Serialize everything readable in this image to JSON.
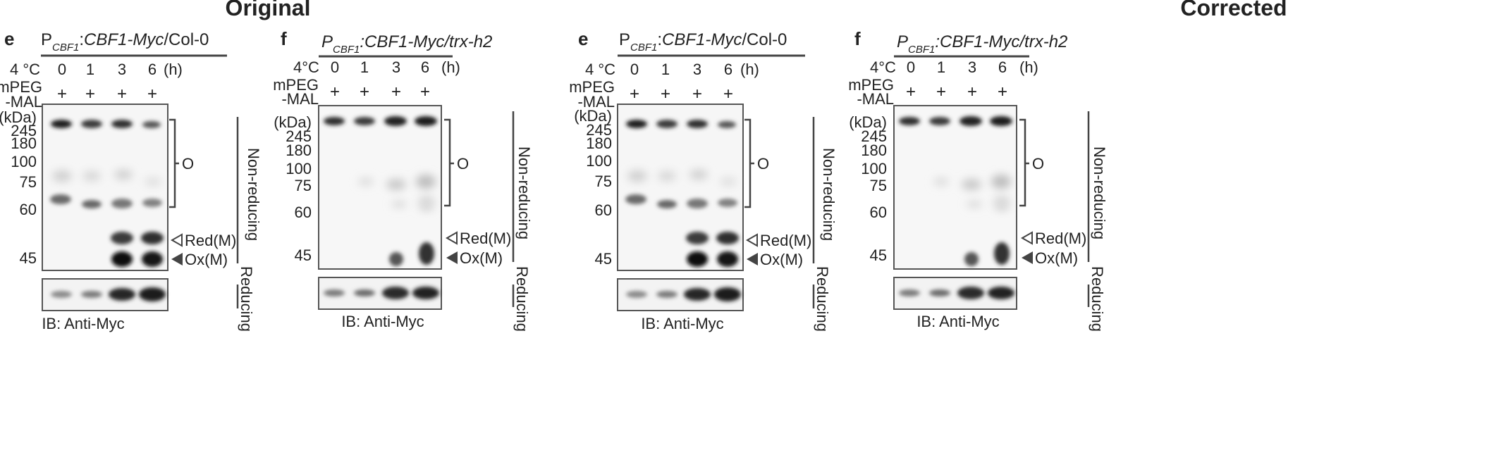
{
  "headers": {
    "left": "Original",
    "right": "Corrected"
  },
  "panels": [
    {
      "letter": "e",
      "genotype": {
        "p": "P",
        "sub": "CBF1",
        "colon": ":",
        "construct": "CBF1-Myc",
        "slash": "/",
        "background": "Col-0",
        "background_italic": false
      },
      "temp_label": "4 °C",
      "times": [
        "0",
        "1",
        "3",
        "6"
      ],
      "time_unit": "(h)",
      "reagent": [
        "mPEG",
        "-MAL"
      ],
      "plus": [
        "+",
        "+",
        "+",
        "+"
      ],
      "kda": "(kDa)",
      "markers": [
        "245",
        "180",
        "100",
        "75",
        "60",
        "45"
      ],
      "bracket_label": "O",
      "red_label": "Red(M)",
      "ox_label": "Ox(M)",
      "nonreducing": "Non-reducing",
      "reducing": "Reducing",
      "ib": "IB: Anti-Myc"
    },
    {
      "letter": "f",
      "genotype": {
        "p": "P",
        "sub": "CBF1",
        "colon": ":",
        "construct": "CBF1-Myc",
        "slash": "/",
        "background": "trx-h2",
        "background_italic": true
      },
      "temp_label": "4°C",
      "times": [
        "0",
        "1",
        "3",
        "6"
      ],
      "time_unit": "(h)",
      "reagent": [
        "mPEG",
        "-MAL"
      ],
      "plus": [
        "+",
        "+",
        "+",
        "+"
      ],
      "kda": "(kDa)",
      "markers": [
        "245",
        "180",
        "100",
        "75",
        "60",
        "45"
      ],
      "bracket_label": "O",
      "red_label": "Red(M)",
      "ox_label": "Ox(M)",
      "nonreducing": "Non-reducing",
      "reducing": "Reducing",
      "ib": "IB: Anti-Myc"
    },
    {
      "letter": "e",
      "genotype": {
        "p": "P",
        "sub": "CBF1",
        "colon": ":",
        "construct": "CBF1-Myc",
        "slash": "/",
        "background": "Col-0",
        "background_italic": false
      },
      "temp_label": "4 °C",
      "times": [
        "0",
        "1",
        "3",
        "6"
      ],
      "time_unit": "(h)",
      "reagent": [
        "mPEG",
        "-MAL"
      ],
      "plus": [
        "+",
        "+",
        "+",
        "+"
      ],
      "kda": "(kDa)",
      "markers": [
        "245",
        "180",
        "100",
        "75",
        "60",
        "45"
      ],
      "bracket_label": "O",
      "red_label": "Red(M)",
      "ox_label": "Ox(M)",
      "nonreducing": "Non-reducing",
      "reducing": "Reducing",
      "ib": "IB: Anti-Myc"
    },
    {
      "letter": "f",
      "genotype": {
        "p": "P",
        "sub": "CBF1",
        "colon": ":",
        "construct": "CBF1-Myc",
        "slash": "/",
        "background": "trx-h2",
        "background_italic": true
      },
      "temp_label": "4°C",
      "times": [
        "0",
        "1",
        "3",
        "6"
      ],
      "time_unit": "(h)",
      "reagent": [
        "mPEG",
        "-MAL"
      ],
      "plus": [
        "+",
        "+",
        "+",
        "+"
      ],
      "kda": "(kDa)",
      "markers": [
        "245",
        "180",
        "100",
        "75",
        "60",
        "45"
      ],
      "bracket_label": "O",
      "red_label": "Red(M)",
      "ox_label": "Ox(M)",
      "nonreducing": "Non-reducing",
      "reducing": "Reducing",
      "ib": "IB: Anti-Myc"
    }
  ]
}
